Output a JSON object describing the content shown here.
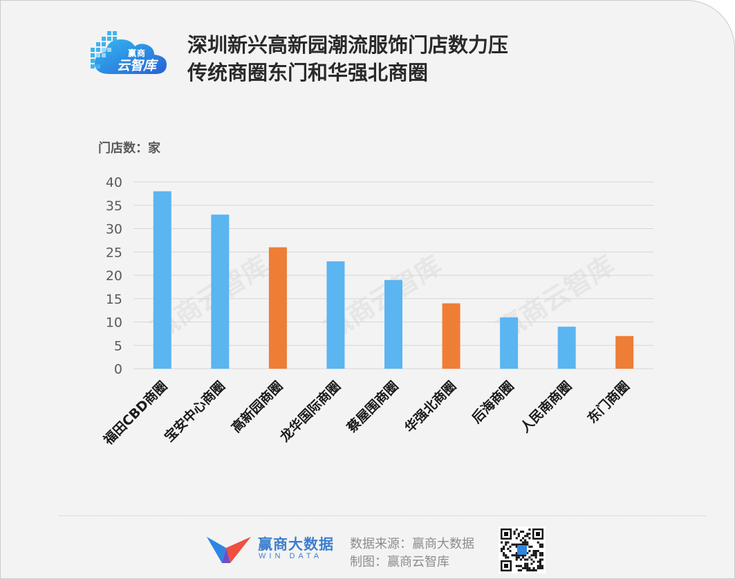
{
  "brand": {
    "logo_top": "赢商",
    "logo_main": "云智库"
  },
  "title": {
    "line1": "深圳新兴高新园潮流服饰门店数力压",
    "line2": "传统商圈东门和华强北商圈"
  },
  "unit_label": "门店数：家",
  "watermark": "赢商云智库",
  "chart_data": {
    "type": "bar",
    "categories": [
      "福田CBD商圈",
      "宝安中心商圈",
      "高新园商圈",
      "龙华国际商圈",
      "蔡屋围商圈",
      "华强北商圈",
      "后海商圈",
      "人民南商圈",
      "东门商圈"
    ],
    "values": [
      38,
      33,
      26,
      23,
      19,
      14,
      11,
      9,
      7
    ],
    "highlighted": [
      false,
      false,
      true,
      false,
      false,
      true,
      false,
      false,
      true
    ],
    "colors": {
      "default": "#5bb5f0",
      "highlight": "#ee7d36"
    },
    "ylim": [
      0,
      40
    ],
    "yticks": [
      0,
      5,
      10,
      15,
      20,
      25,
      30,
      35,
      40
    ],
    "grid": true,
    "ylabel": "门店数：家",
    "xlabel": ""
  },
  "footer": {
    "brand_cn": "赢商大数据",
    "brand_en": "WIN DATA",
    "source_line": "数据来源：赢商大数据",
    "made_by_line": "制图：赢商云智库"
  }
}
